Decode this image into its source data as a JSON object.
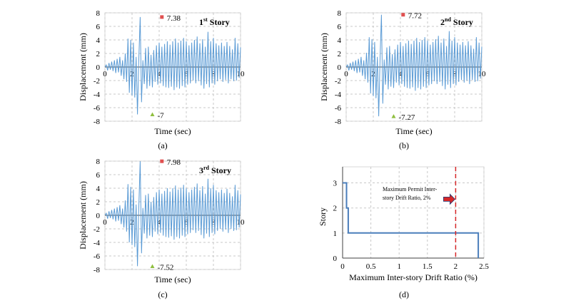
{
  "chart_data": [
    {
      "type": "line",
      "panel_caption": "(a)",
      "story_label": {
        "num": "1",
        "sup": "st",
        "word": "Story"
      },
      "xlabel": "Time (sec)",
      "ylabel": "Displacement (mm)",
      "xlim": [
        0,
        10
      ],
      "ylim": [
        -8,
        8
      ],
      "xticks": [
        0,
        2,
        4,
        6,
        8,
        10
      ],
      "yticks": [
        8,
        6,
        4,
        2,
        0,
        -2,
        -4,
        -6,
        -8
      ],
      "grid": true,
      "color": "#5b9bd5",
      "max_point": {
        "x": 4.2,
        "y": 7.38,
        "label": "7.38",
        "color": "#e05050"
      },
      "min_point": {
        "x": 3.5,
        "y": -7,
        "label": "-7",
        "color": "#8fbf3f"
      },
      "series": [
        {
          "values": [
            0,
            0.3,
            -0.5,
            0.6,
            -0.4,
            0.8,
            -0.6,
            1.0,
            -0.9,
            1.2,
            -0.8,
            1.5,
            -1.3,
            1.0,
            -1.8,
            2.0,
            -2.2,
            4.2,
            -3.8,
            4.0,
            -4.2,
            3.6,
            -4.5,
            1.5,
            -7.0,
            1.2,
            7.38,
            -5.2,
            1.0,
            -2.5,
            2.8,
            -3.2,
            3.0,
            -2.8,
            1.8,
            -3.0,
            2.5,
            -2.2,
            3.2,
            -2.6,
            3.6,
            -2.4,
            3.0,
            -2.8,
            3.4,
            -3.0,
            3.8,
            -3.1,
            3.3,
            -2.9,
            3.8,
            -3.4,
            4.2,
            -3.0,
            3.6,
            -3.2,
            3.9,
            -2.8,
            4.3,
            -3.0,
            3.8,
            -2.6,
            3.2,
            -2.4,
            3.6,
            -2.0,
            4.0,
            -2.4,
            4.5,
            -2.1,
            3.5,
            -2.7,
            4.1,
            -3.2,
            3.0,
            -2.5,
            5.2,
            -3.0,
            3.8,
            -2.4,
            4.3,
            -2.6,
            3.5,
            -2.1,
            3.2,
            -1.8,
            3.6,
            -2.2,
            3.1,
            -1.9,
            3.7,
            -2.4,
            3.1,
            -1.8,
            2.6,
            -2.1,
            4.3,
            -2.0,
            3.5,
            -1.6,
            2.9
          ]
        }
      ]
    },
    {
      "type": "line",
      "panel_caption": "(b)",
      "story_label": {
        "num": "2",
        "sup": "nd",
        "word": "Story"
      },
      "xlabel": "Time (sec)",
      "ylabel": "Displacement (mm)",
      "xlim": [
        0,
        10
      ],
      "ylim": [
        -8,
        8
      ],
      "xticks": [
        0,
        2,
        4,
        6,
        8,
        10
      ],
      "yticks": [
        8,
        6,
        4,
        2,
        0,
        -2,
        -4,
        -6,
        -8
      ],
      "grid": true,
      "color": "#5b9bd5",
      "max_point": {
        "x": 4.2,
        "y": 7.72,
        "label": "7.72",
        "color": "#e05050"
      },
      "min_point": {
        "x": 3.5,
        "y": -7.27,
        "label": "-7.27",
        "color": "#8fbf3f"
      },
      "series": [
        {
          "values": [
            0,
            0.3,
            -0.5,
            0.6,
            -0.4,
            0.8,
            -0.6,
            1.0,
            -0.9,
            1.2,
            -0.8,
            1.5,
            -1.3,
            1.0,
            -1.8,
            2.1,
            -2.3,
            4.4,
            -3.9,
            4.1,
            -4.3,
            3.7,
            -4.6,
            1.5,
            -7.27,
            1.3,
            7.72,
            -5.4,
            1.1,
            -2.6,
            2.9,
            -3.3,
            3.1,
            -2.9,
            1.9,
            -3.1,
            2.6,
            -2.3,
            3.3,
            -2.7,
            3.7,
            -2.5,
            3.1,
            -2.9,
            3.5,
            -3.1,
            3.9,
            -3.2,
            3.4,
            -3.0,
            3.9,
            -3.5,
            4.3,
            -3.1,
            3.7,
            -3.3,
            4.0,
            -2.9,
            4.4,
            -3.1,
            3.9,
            -2.7,
            3.3,
            -2.5,
            3.7,
            -2.1,
            4.1,
            -2.5,
            4.6,
            -2.2,
            3.6,
            -2.8,
            4.2,
            -3.3,
            3.1,
            -2.6,
            5.3,
            -3.1,
            3.9,
            -2.5,
            4.4,
            -2.7,
            3.6,
            -2.2,
            3.3,
            -1.9,
            3.7,
            -2.3,
            3.2,
            -2.0,
            3.8,
            -2.5,
            3.2,
            -1.9,
            2.7,
            -2.2,
            4.4,
            -2.1,
            3.6,
            -1.7,
            3.0
          ]
        }
      ]
    },
    {
      "type": "line",
      "panel_caption": "(c)",
      "story_label": {
        "num": "3",
        "sup": "rd",
        "word": "Story"
      },
      "xlabel": "Time (sec)",
      "ylabel": "Displacement (mm)",
      "xlim": [
        0,
        10
      ],
      "ylim": [
        -8,
        8
      ],
      "xticks": [
        0,
        2,
        4,
        6,
        8,
        10
      ],
      "yticks": [
        8,
        6,
        4,
        2,
        0,
        -2,
        -4,
        -6,
        -8
      ],
      "grid": true,
      "color": "#5b9bd5",
      "max_point": {
        "x": 4.2,
        "y": 7.98,
        "label": "7.98",
        "color": "#e05050"
      },
      "min_point": {
        "x": 3.5,
        "y": -7.52,
        "label": "-7.52",
        "color": "#8fbf3f"
      },
      "series": [
        {
          "values": [
            0,
            0.3,
            -0.5,
            0.6,
            -0.4,
            0.8,
            -0.6,
            1.0,
            -0.9,
            1.2,
            -0.8,
            1.5,
            -1.3,
            1.0,
            -1.8,
            2.2,
            -2.4,
            4.6,
            -4.0,
            4.2,
            -4.4,
            3.8,
            -4.7,
            1.6,
            -7.52,
            1.3,
            7.98,
            -5.6,
            1.1,
            -2.7,
            3.0,
            -3.4,
            3.2,
            -3.0,
            2.0,
            -3.2,
            2.7,
            -2.4,
            3.4,
            -2.8,
            3.8,
            -2.6,
            3.2,
            -3.0,
            3.6,
            -3.2,
            4.0,
            -3.3,
            3.5,
            -3.1,
            4.0,
            -3.6,
            4.4,
            -3.2,
            3.8,
            -3.4,
            4.1,
            -3.0,
            4.5,
            -3.2,
            4.0,
            -2.8,
            3.4,
            -2.6,
            3.8,
            -2.2,
            4.2,
            -2.6,
            4.7,
            -2.3,
            3.7,
            -2.9,
            4.3,
            -3.4,
            3.2,
            -2.7,
            5.4,
            -3.2,
            4.0,
            -2.6,
            4.5,
            -2.8,
            3.7,
            -2.3,
            3.4,
            -2.0,
            3.8,
            -2.4,
            3.3,
            -2.1,
            3.9,
            -2.6,
            3.3,
            -2.0,
            2.8,
            -2.3,
            4.5,
            -2.2,
            3.7,
            -1.8,
            3.1
          ]
        }
      ]
    },
    {
      "type": "line",
      "panel_caption": "(d)",
      "xlabel": "Maximum Inter-story Drift Ratio (%)",
      "ylabel": "Story",
      "xlim": [
        0,
        2.5
      ],
      "ylim": [
        0,
        3.3
      ],
      "xticks": [
        "0",
        "0.5",
        "1",
        "1.5",
        "2",
        "2.5"
      ],
      "yticks": [
        "0",
        "1",
        "2",
        "3"
      ],
      "grid": true,
      "color": "#4a7ebb",
      "step_path": [
        [
          0,
          3
        ],
        [
          0.07,
          3
        ],
        [
          0.07,
          2
        ],
        [
          0.1,
          2
        ],
        [
          0.1,
          1
        ],
        [
          2.4,
          1
        ],
        [
          2.4,
          0
        ]
      ],
      "limit_line": {
        "x": 2,
        "color": "#d62728"
      },
      "note": {
        "lines": [
          "Maximum Permit Inter-",
          "story Drift Ratio, 2%"
        ]
      },
      "arrow_color": "#d62728"
    }
  ]
}
